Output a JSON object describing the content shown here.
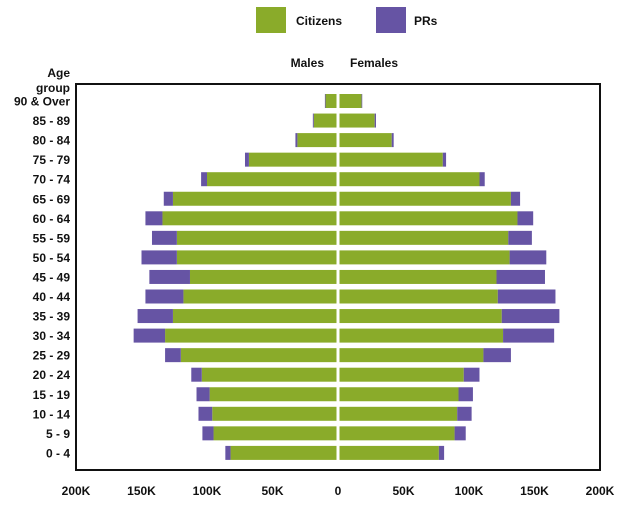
{
  "chart_data": {
    "type": "bar",
    "subtype": "population-pyramid",
    "legend": [
      {
        "name": "Citizens",
        "color": "#8aab2a"
      },
      {
        "name": "PRs",
        "color": "#6654a4"
      }
    ],
    "legend_placement": "top-center",
    "side_labels": {
      "left": "Males",
      "right": "Females"
    },
    "ylabel": "Age group",
    "xlim": [
      -200000,
      200000
    ],
    "x_ticks": [
      {
        "value": -200000,
        "label": "200K"
      },
      {
        "value": -150000,
        "label": "150K"
      },
      {
        "value": -100000,
        "label": "100K"
      },
      {
        "value": -50000,
        "label": "50K"
      },
      {
        "value": 0,
        "label": "0"
      },
      {
        "value": 50000,
        "label": "50K"
      },
      {
        "value": 100000,
        "label": "100K"
      },
      {
        "value": 150000,
        "label": "150K"
      },
      {
        "value": 200000,
        "label": "200K"
      }
    ],
    "categories": [
      "90 & Over",
      "85 - 89",
      "80 - 84",
      "75 - 79",
      "70 - 74",
      "65 - 69",
      "60 - 64",
      "55 - 59",
      "50 - 54",
      "45 - 49",
      "40 - 44",
      "35 - 39",
      "30 - 34",
      "25 - 29",
      "20 - 24",
      "15 - 19",
      "10 - 14",
      "5 - 9",
      "0 - 4"
    ],
    "series": [
      {
        "name": "Citizens",
        "group": "Males",
        "values": [
          9500,
          18500,
          31000,
          68000,
          100000,
          126000,
          134000,
          123000,
          123000,
          113000,
          118000,
          126000,
          132000,
          120000,
          104000,
          98000,
          96000,
          95000,
          82000
        ]
      },
      {
        "name": "PRs",
        "group": "Males",
        "values": [
          500,
          700,
          1500,
          3000,
          4500,
          7000,
          13000,
          19000,
          27000,
          31000,
          29000,
          27000,
          24000,
          12000,
          8000,
          10000,
          10500,
          8500,
          4000
        ]
      },
      {
        "name": "Citizens",
        "group": "Females",
        "values": [
          18000,
          28000,
          41000,
          80000,
          108000,
          132000,
          137000,
          130000,
          131000,
          121000,
          122000,
          125000,
          126000,
          111000,
          96000,
          92000,
          91000,
          89000,
          77000
        ]
      },
      {
        "name": "PRs",
        "group": "Females",
        "values": [
          500,
          1000,
          1500,
          2500,
          4000,
          7000,
          12000,
          18000,
          28000,
          37000,
          44000,
          44000,
          39000,
          21000,
          12000,
          11000,
          11000,
          8500,
          4000
        ]
      }
    ],
    "grid": false
  }
}
